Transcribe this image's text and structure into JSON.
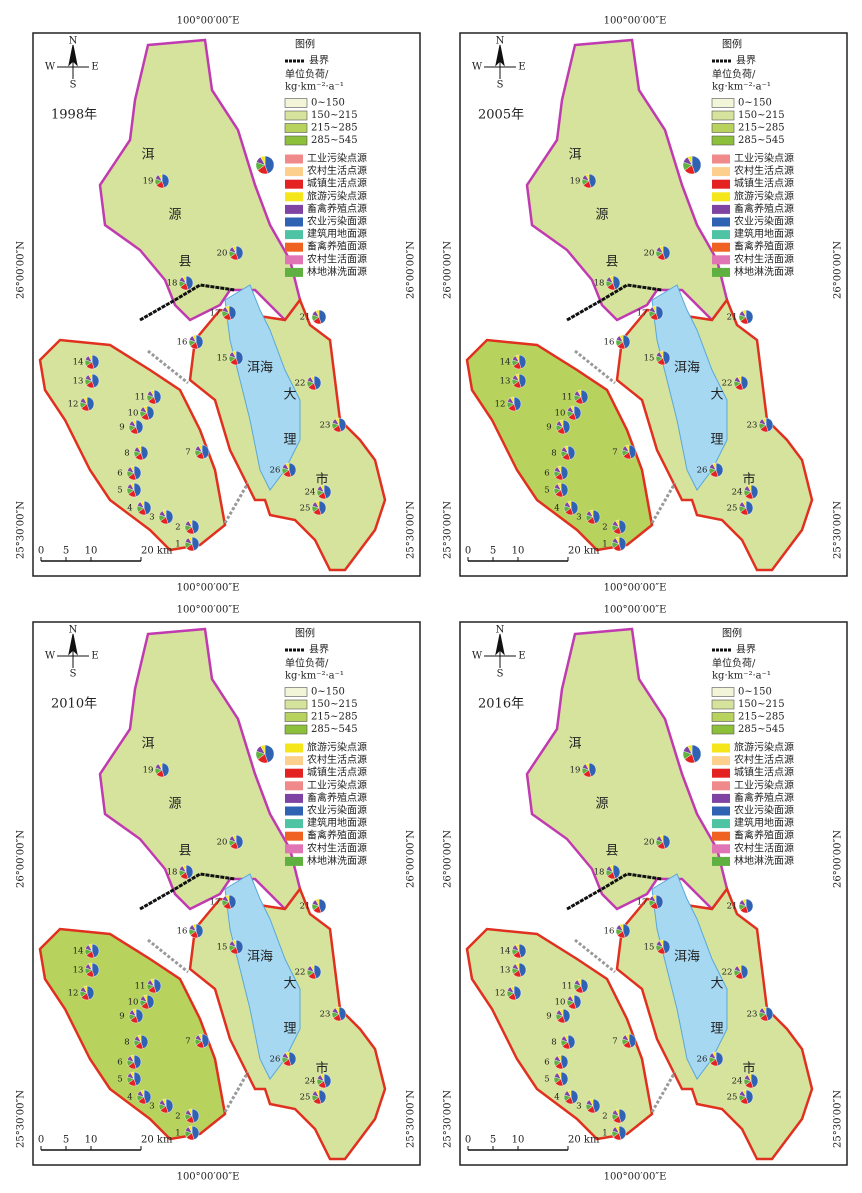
{
  "panels": [
    {
      "year": "1998年",
      "top_coord": "100°00′00″E",
      "bottom_coord": "100°00′00″E",
      "left_coords": [
        "26°00′00″N",
        "25°30′00″N"
      ],
      "right_coords": [
        "26°00′00″N",
        "25°30′00″N"
      ],
      "legend": {
        "title": "图例",
        "boundary": "县界",
        "unit": [
          "单位负荷/",
          "kg·km⁻²·a⁻¹"
        ],
        "classes": [
          {
            "label": "0~150",
            "color": "#f3f5d8"
          },
          {
            "label": "150~215",
            "color": "#d6e39c"
          },
          {
            "label": "215~285",
            "color": "#b7d35e"
          },
          {
            "label": "285~545",
            "color": "#8cbf3a"
          }
        ],
        "sources": [
          {
            "label": "工业污染点源",
            "color": "#f08a8a"
          },
          {
            "label": "农村生活点源",
            "color": "#fcd08c"
          },
          {
            "label": "城镇生活点源",
            "color": "#e52222"
          },
          {
            "label": "旅游污染点源",
            "color": "#f5e61a"
          },
          {
            "label": "畜禽养殖点源",
            "color": "#7f43a3"
          },
          {
            "label": "农业污染面源",
            "color": "#2f62b3"
          },
          {
            "label": "建筑用地面源",
            "color": "#4fc4a4"
          },
          {
            "label": "畜禽养殖面源",
            "color": "#f06222"
          },
          {
            "label": "农村生活面源",
            "color": "#e074b4"
          },
          {
            "label": "林地淋洗面源",
            "color": "#5eb040"
          }
        ]
      },
      "places": [
        "洱",
        "源",
        "县",
        "洱海",
        "大",
        "理",
        "市"
      ],
      "scale": [
        "0",
        "5",
        "10",
        "20 km"
      ],
      "zones": [
        "1",
        "2",
        "3",
        "4",
        "5",
        "6",
        "7",
        "8",
        "9",
        "10",
        "11",
        "12",
        "13",
        "14",
        "15",
        "16",
        "17",
        "18",
        "19",
        "20",
        "21",
        "22",
        "23",
        "24",
        "25",
        "26"
      ]
    },
    {
      "year": "2005年",
      "top_coord": "100°00′00″E",
      "bottom_coord": "100°00′00″E",
      "left_coords": [
        "26°00′00″N",
        "25°30′00″N"
      ],
      "right_coords": [
        "26°00′00″N",
        "25°30′00″N"
      ],
      "legend": {
        "title": "图例",
        "boundary": "县界",
        "unit": [
          "单位负荷/",
          "kg·km⁻²·a⁻¹"
        ],
        "classes": [
          {
            "label": "0~150",
            "color": "#f3f5d8"
          },
          {
            "label": "150~215",
            "color": "#d6e39c"
          },
          {
            "label": "215~285",
            "color": "#b7d35e"
          },
          {
            "label": "285~545",
            "color": "#8cbf3a"
          }
        ],
        "sources": [
          {
            "label": "工业污染点源",
            "color": "#f08a8a"
          },
          {
            "label": "农村生活点源",
            "color": "#fcd08c"
          },
          {
            "label": "城镇生活点源",
            "color": "#e52222"
          },
          {
            "label": "旅游污染点源",
            "color": "#f5e61a"
          },
          {
            "label": "畜禽养殖点源",
            "color": "#7f43a3"
          },
          {
            "label": "农业污染面源",
            "color": "#2f62b3"
          },
          {
            "label": "建筑用地面源",
            "color": "#4fc4a4"
          },
          {
            "label": "畜禽养殖面源",
            "color": "#f06222"
          },
          {
            "label": "农村生活面源",
            "color": "#e074b4"
          },
          {
            "label": "林地淋洗面源",
            "color": "#5eb040"
          }
        ]
      },
      "places": [
        "洱",
        "源",
        "县",
        "洱海",
        "大",
        "理",
        "市"
      ],
      "scale": [
        "0",
        "5",
        "10",
        "20 km"
      ],
      "zones": [
        "1",
        "2",
        "3",
        "4",
        "5",
        "6",
        "7",
        "8",
        "9",
        "10",
        "11",
        "12",
        "13",
        "14",
        "15",
        "16",
        "17",
        "18",
        "19",
        "20",
        "21",
        "22",
        "23",
        "24",
        "25",
        "26"
      ]
    },
    {
      "year": "2010年",
      "top_coord": "100°00′00″E",
      "bottom_coord": "100°00′00″E",
      "left_coords": [
        "26°00′00″N",
        "25°30′00″N"
      ],
      "right_coords": [
        "26°00′00″N",
        "25°30′00″N"
      ],
      "legend": {
        "title": "图例",
        "boundary": "县界",
        "unit": [
          "单位负荷/",
          "kg·km⁻²·a⁻¹"
        ],
        "classes": [
          {
            "label": "0~150",
            "color": "#f3f5d8"
          },
          {
            "label": "150~215",
            "color": "#d6e39c"
          },
          {
            "label": "215~285",
            "color": "#b7d35e"
          },
          {
            "label": "285~545",
            "color": "#8cbf3a"
          }
        ],
        "sources": [
          {
            "label": "旅游污染点源",
            "color": "#f5e61a"
          },
          {
            "label": "农村生活点源",
            "color": "#fcd08c"
          },
          {
            "label": "城镇生活点源",
            "color": "#e52222"
          },
          {
            "label": "工业污染点源",
            "color": "#f08a8a"
          },
          {
            "label": "畜禽养殖点源",
            "color": "#7f43a3"
          },
          {
            "label": "农业污染面源",
            "color": "#2f62b3"
          },
          {
            "label": "建筑用地面源",
            "color": "#4fc4a4"
          },
          {
            "label": "畜禽养殖面源",
            "color": "#f06222"
          },
          {
            "label": "农村生活面源",
            "color": "#e074b4"
          },
          {
            "label": "林地淋洗面源",
            "color": "#5eb040"
          }
        ]
      },
      "places": [
        "洱",
        "源",
        "县",
        "洱海",
        "大",
        "理",
        "市"
      ],
      "scale": [
        "0",
        "5",
        "10",
        "20 km"
      ],
      "zones": [
        "1",
        "2",
        "3",
        "4",
        "5",
        "6",
        "7",
        "8",
        "9",
        "10",
        "11",
        "12",
        "13",
        "14",
        "15",
        "16",
        "17",
        "18",
        "19",
        "20",
        "21",
        "22",
        "23",
        "24",
        "25",
        "26"
      ]
    },
    {
      "year": "2016年",
      "top_coord": "100°00′00″E",
      "bottom_coord": "100°00′00″E",
      "left_coords": [
        "26°00′00″N",
        "25°30′00″N"
      ],
      "right_coords": [
        "26°00′00″N",
        "25°30′00″N"
      ],
      "legend": {
        "title": "图例",
        "boundary": "县界",
        "unit": [
          "单位负荷/",
          "kg·km⁻²·a⁻¹"
        ],
        "classes": [
          {
            "label": "0~150",
            "color": "#f3f5d8"
          },
          {
            "label": "150~215",
            "color": "#d6e39c"
          },
          {
            "label": "215~285",
            "color": "#b7d35e"
          },
          {
            "label": "285~545",
            "color": "#8cbf3a"
          }
        ],
        "sources": [
          {
            "label": "旅游污染点源",
            "color": "#f5e61a"
          },
          {
            "label": "农村生活点源",
            "color": "#fcd08c"
          },
          {
            "label": "城镇生活点源",
            "color": "#e52222"
          },
          {
            "label": "工业污染点源",
            "color": "#f08a8a"
          },
          {
            "label": "畜禽养殖点源",
            "color": "#7f43a3"
          },
          {
            "label": "农业污染面源",
            "color": "#2f62b3"
          },
          {
            "label": "建筑用地面源",
            "color": "#4fc4a4"
          },
          {
            "label": "畜禽养殖面源",
            "color": "#f06222"
          },
          {
            "label": "农村生活面源",
            "color": "#e074b4"
          },
          {
            "label": "林地淋洗面源",
            "color": "#5eb040"
          }
        ]
      },
      "places": [
        "洱",
        "源",
        "县",
        "洱海",
        "大",
        "理",
        "市"
      ],
      "scale": [
        "0",
        "5",
        "10",
        "20 km"
      ],
      "zones": [
        "1",
        "2",
        "3",
        "4",
        "5",
        "6",
        "7",
        "8",
        "9",
        "10",
        "11",
        "12",
        "13",
        "14",
        "15",
        "16",
        "17",
        "18",
        "19",
        "20",
        "21",
        "22",
        "23",
        "24",
        "25",
        "26"
      ]
    }
  ]
}
